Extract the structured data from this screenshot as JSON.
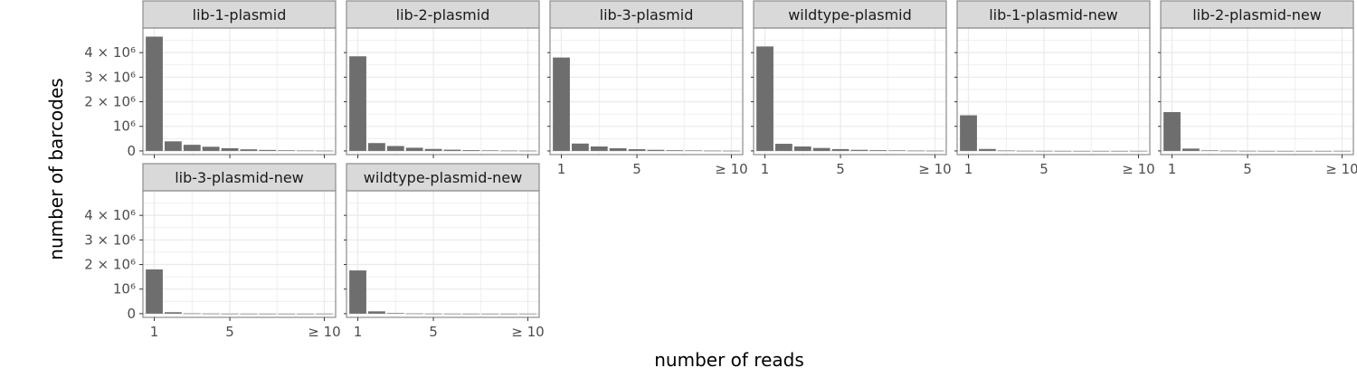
{
  "chart_data": {
    "type": "bar",
    "layout": "facet_wrap",
    "ncol": 6,
    "xlabel": "number of reads",
    "ylabel": "number of barcodes",
    "categories": [
      "1",
      "2",
      "3",
      "4",
      "5",
      "6",
      "7",
      "8",
      "9",
      "≥10"
    ],
    "x_tick_labels": [
      "1",
      "5",
      "≥ 10"
    ],
    "x_tick_categories": [
      "1",
      "5",
      "≥10"
    ],
    "y_tick_labels": [
      "0",
      "10⁶",
      "2 × 10⁶",
      "3 × 10⁶",
      "4 × 10⁶"
    ],
    "y_tick_values": [
      0,
      1000000,
      2000000,
      3000000,
      4000000
    ],
    "ylim": [
      -150000,
      5000000
    ],
    "grid": true,
    "theme": "bw",
    "colors": {
      "bar": "#6e6e6e",
      "strip_fill": "#d9d9d9",
      "strip_border": "#8c8c8c",
      "panel_border": "#8c8c8c",
      "grid": "#ebebeb"
    },
    "facets": [
      {
        "name": "lib-1-plasmid",
        "values": [
          4650000,
          390000,
          250000,
          170000,
          110000,
          65000,
          40000,
          25000,
          15000,
          10000
        ]
      },
      {
        "name": "lib-2-plasmid",
        "values": [
          3850000,
          320000,
          200000,
          130000,
          80000,
          50000,
          32000,
          20000,
          12000,
          9000
        ]
      },
      {
        "name": "lib-3-plasmid",
        "values": [
          3800000,
          300000,
          180000,
          110000,
          70000,
          45000,
          28000,
          18000,
          11000,
          8000
        ]
      },
      {
        "name": "wildtype-plasmid",
        "values": [
          4250000,
          290000,
          180000,
          120000,
          75000,
          45000,
          30000,
          20000,
          12000,
          9000
        ]
      },
      {
        "name": "lib-1-plasmid-new",
        "values": [
          1450000,
          80000,
          15000,
          6000,
          3000,
          2000,
          1000,
          800,
          500,
          3000
        ]
      },
      {
        "name": "lib-2-plasmid-new",
        "values": [
          1580000,
          95000,
          20000,
          8000,
          4000,
          2000,
          1000,
          800,
          500,
          3000
        ]
      },
      {
        "name": "lib-3-plasmid-new",
        "values": [
          1800000,
          60000,
          12000,
          5000,
          2500,
          1500,
          900,
          600,
          400,
          2500
        ]
      },
      {
        "name": "wildtype-plasmid-new",
        "values": [
          1760000,
          95000,
          25000,
          9000,
          4000,
          2000,
          1000,
          800,
          500,
          2500
        ]
      }
    ]
  }
}
